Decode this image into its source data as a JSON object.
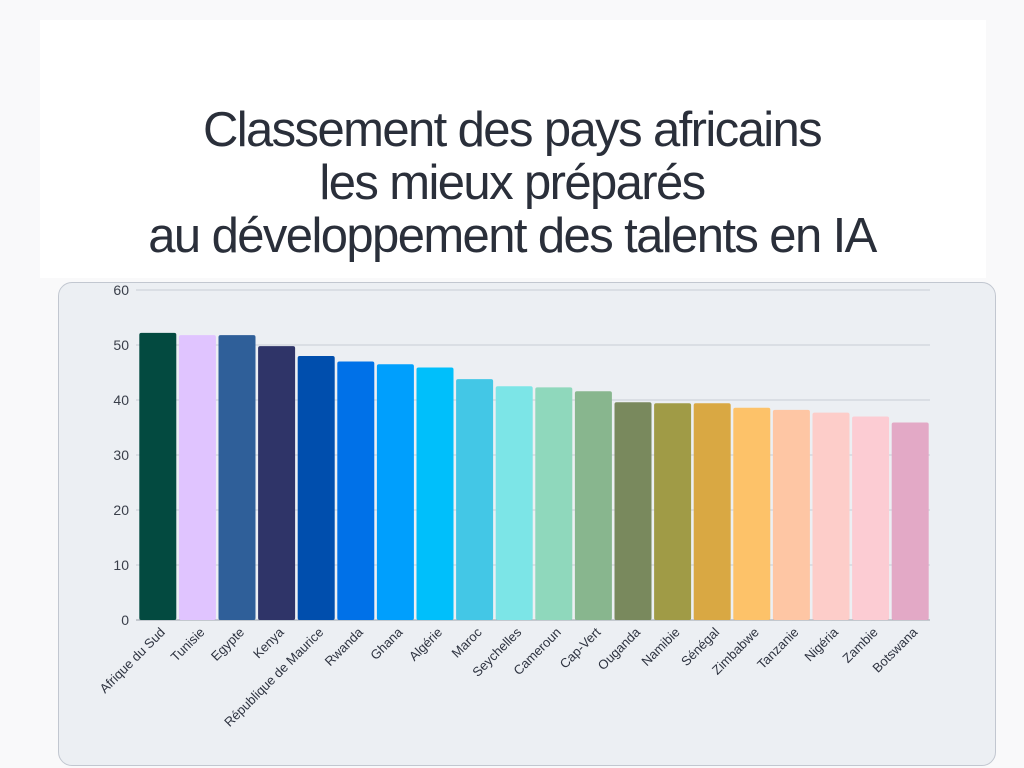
{
  "page": {
    "title_lines": [
      "Classement des pays africains",
      "les mieux préparés",
      "au développement des talents en IA"
    ]
  },
  "chart_data": {
    "type": "bar",
    "title": "Classement des pays africains les mieux préparés au développement des talents en IA",
    "xlabel": "",
    "ylabel": "",
    "ylim": [
      0,
      60
    ],
    "yticks": [
      0,
      10,
      20,
      30,
      40,
      50,
      60
    ],
    "grid": true,
    "legend": "none",
    "categories": [
      "Afrique du Sud",
      "Tunisie",
      "Egypte",
      "Kenya",
      "République de Maurice",
      "Rwanda",
      "Ghana",
      "Algérie",
      "Maroc",
      "Seychelles",
      "Cameroun",
      "Cap-Vert",
      "Ouganda",
      "Namibie",
      "Sénégal",
      "Zimbabwe",
      "Tanzanie",
      "Nigéria",
      "Zambie",
      "Botswana"
    ],
    "values": [
      52.2,
      51.8,
      51.8,
      49.8,
      48.0,
      47.0,
      46.5,
      45.9,
      43.8,
      42.5,
      42.3,
      41.6,
      39.6,
      39.4,
      39.4,
      38.6,
      38.2,
      37.7,
      37.0,
      35.9
    ],
    "colors": [
      "#034a40",
      "#e0c4ff",
      "#2f5f99",
      "#2f3468",
      "#004ead",
      "#0071e8",
      "#009ffd",
      "#00bffb",
      "#43c7e6",
      "#7ce5e7",
      "#8fd8bc",
      "#88b68e",
      "#79895d",
      "#a09b46",
      "#d9a843",
      "#fdc269",
      "#fec6a4",
      "#fdcdc9",
      "#fcccd3",
      "#e3a9c6"
    ]
  }
}
